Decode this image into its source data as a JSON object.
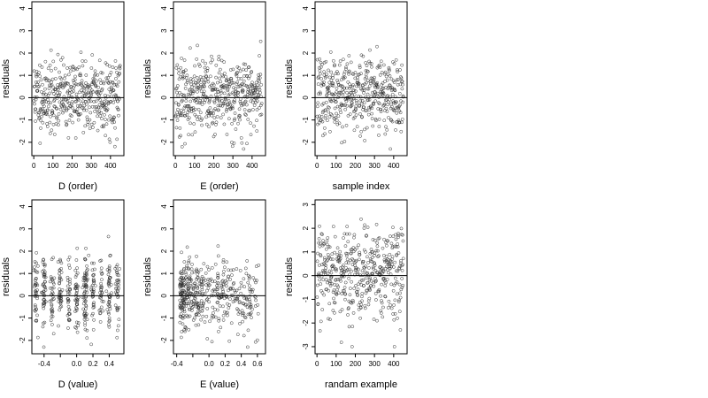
{
  "chart_data": [
    {
      "type": "scatter",
      "xlabel": "D (order)",
      "ylabel": "residuals",
      "xlim": [
        -10,
        470
      ],
      "ylim": [
        -2.6,
        4.3
      ],
      "xticks": [
        0,
        100,
        200,
        300,
        400
      ],
      "xtick_labels": [
        "0",
        "100",
        "200",
        "300",
        "400"
      ],
      "yticks": [
        -2,
        -1,
        0,
        1,
        2,
        3,
        4
      ],
      "ytick_labels": [
        "-2",
        "-1",
        "0",
        "1",
        "2",
        "3",
        "4"
      ],
      "hline": 0,
      "gen": {
        "seed": 11,
        "n": 450,
        "x_kind": "index",
        "x_min": 1,
        "x_max": 450,
        "y_mean": 0.1,
        "y_sd": 0.85,
        "y_min": -2.3,
        "y_max": 4.1
      }
    },
    {
      "type": "scatter",
      "xlabel": "E (order)",
      "ylabel": "residuals",
      "xlim": [
        -10,
        470
      ],
      "ylim": [
        -2.6,
        4.3
      ],
      "xticks": [
        0,
        100,
        200,
        300,
        400
      ],
      "xtick_labels": [
        "0",
        "100",
        "200",
        "300",
        "400"
      ],
      "yticks": [
        -2,
        -1,
        0,
        1,
        2,
        3,
        4
      ],
      "ytick_labels": [
        "-2",
        "-1",
        "0",
        "1",
        "2",
        "3",
        "4"
      ],
      "hline": 0,
      "gen": {
        "seed": 23,
        "n": 450,
        "x_kind": "index",
        "x_min": 1,
        "x_max": 450,
        "y_mean": 0.1,
        "y_sd": 0.85,
        "y_min": -2.3,
        "y_max": 4.1
      }
    },
    {
      "type": "scatter",
      "xlabel": "sample index",
      "ylabel": "residuals",
      "xlim": [
        -10,
        470
      ],
      "ylim": [
        -2.6,
        4.3
      ],
      "xticks": [
        0,
        100,
        200,
        300,
        400
      ],
      "xtick_labels": [
        "0",
        "100",
        "200",
        "300",
        "400"
      ],
      "yticks": [
        -2,
        -1,
        0,
        1,
        2,
        3,
        4
      ],
      "ytick_labels": [
        "-2",
        "-1",
        "0",
        "1",
        "2",
        "3",
        "4"
      ],
      "hline": 0,
      "gen": {
        "seed": 37,
        "n": 450,
        "x_kind": "index",
        "x_min": 1,
        "x_max": 450,
        "y_mean": 0.1,
        "y_sd": 0.85,
        "y_min": -2.3,
        "y_max": 4.1
      }
    },
    {
      "type": "scatter",
      "xlabel": "D (value)",
      "ylabel": "residuals",
      "xlim": [
        -0.55,
        0.58
      ],
      "ylim": [
        -2.6,
        4.3
      ],
      "xticks": [
        -0.4,
        -0.2,
        0.0,
        0.2,
        0.4
      ],
      "xtick_labels": [
        "-0.4",
        "",
        "0.0",
        "0.2",
        "0.4"
      ],
      "yticks": [
        -2,
        -1,
        0,
        1,
        2,
        3,
        4
      ],
      "ytick_labels": [
        "-2",
        "-1",
        "0",
        "1",
        "2",
        "3",
        "4"
      ],
      "hline": 0,
      "gen": {
        "seed": 41,
        "n": 450,
        "x_kind": "clusters",
        "x_centers": [
          -0.5,
          -0.4,
          -0.3,
          -0.2,
          -0.1,
          0.0,
          0.1,
          0.12,
          0.2,
          0.3,
          0.4,
          0.5
        ],
        "x_jitter": 0.012,
        "y_mean": 0.1,
        "y_sd": 0.85,
        "y_min": -2.3,
        "y_max": 4.1
      }
    },
    {
      "type": "scatter",
      "xlabel": "E (value)",
      "ylabel": "residuals",
      "xlim": [
        -0.44,
        0.7
      ],
      "ylim": [
        -2.6,
        4.3
      ],
      "xticks": [
        -0.4,
        -0.2,
        0.0,
        0.2,
        0.4,
        0.6
      ],
      "xtick_labels": [
        "-0.4",
        "",
        "0.0",
        "0.2",
        "0.4",
        "0.6"
      ],
      "yticks": [
        -2,
        -1,
        0,
        1,
        2,
        3,
        4
      ],
      "ytick_labels": [
        "-2",
        "-1",
        "0",
        "1",
        "2",
        "3",
        "4"
      ],
      "hline": 0,
      "gen": {
        "seed": 53,
        "n": 450,
        "x_kind": "skewed",
        "x_min": -0.36,
        "x_max": 0.62,
        "y_mean": 0.1,
        "y_sd": 0.85,
        "y_min": -2.3,
        "y_max": 4.1
      }
    },
    {
      "type": "scatter",
      "xlabel": "randam example",
      "ylabel": "residuals",
      "xlim": [
        -10,
        470
      ],
      "ylim": [
        -3.3,
        3.2
      ],
      "xticks": [
        0,
        100,
        200,
        300,
        400
      ],
      "xtick_labels": [
        "0",
        "100",
        "200",
        "300",
        "400"
      ],
      "yticks": [
        -3,
        -2,
        -1,
        0,
        1,
        2,
        3
      ],
      "ytick_labels": [
        "-3",
        "-2",
        "-1",
        "0",
        "1",
        "2",
        "3"
      ],
      "hline": 0,
      "gen": {
        "seed": 67,
        "n": 450,
        "x_kind": "index",
        "x_min": 1,
        "x_max": 450,
        "y_mean": 0.1,
        "y_sd": 1.0,
        "y_min": -3.0,
        "y_max": 2.9
      }
    }
  ]
}
